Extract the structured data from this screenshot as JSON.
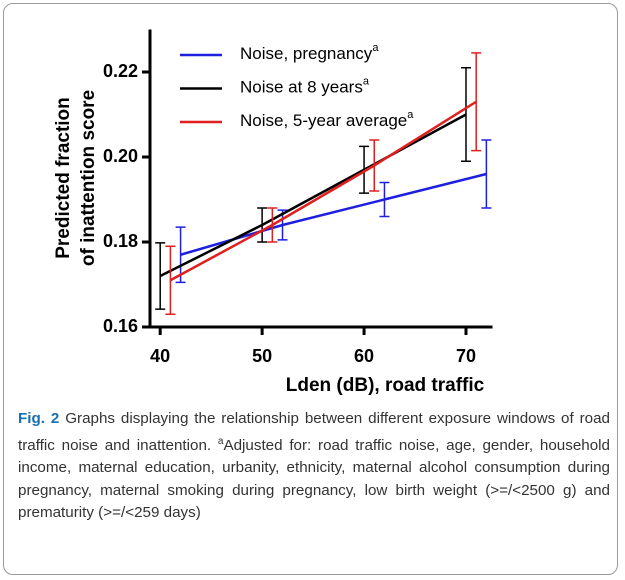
{
  "chart_data": {
    "type": "line",
    "x_label": "Lden (dB), road traffic",
    "y_label": [
      "Predicted fraction",
      "of inattention score"
    ],
    "footnote_mark": "a",
    "xlim": [
      39,
      72.6
    ],
    "xticks": [
      40,
      50,
      60,
      70
    ],
    "ylim": [
      0.16,
      0.23
    ],
    "yticks": [
      0.16,
      0.18,
      {
        "value": 0.2,
        "label": "0.20"
      },
      0.22
    ],
    "series": [
      {
        "name": "Noise, pregnancy",
        "color": "#1f1fe0",
        "x": [
          42,
          52,
          62,
          72
        ],
        "values": [
          0.177,
          0.184,
          0.19,
          0.196
        ],
        "errors": [
          0.0065,
          0.0035,
          0.004,
          0.008
        ]
      },
      {
        "name": "Noise at 8 years",
        "color": "#000000",
        "x": [
          40,
          50,
          60,
          70
        ],
        "values": [
          0.172,
          0.184,
          0.197,
          0.21
        ],
        "errors": [
          0.0078,
          0.004,
          0.0055,
          0.011
        ]
      },
      {
        "name": "Noise, 5-year average",
        "color": "#e01f1f",
        "x": [
          41,
          51,
          61,
          71
        ],
        "values": [
          0.171,
          0.184,
          0.198,
          0.213
        ],
        "errors": [
          0.008,
          0.004,
          0.006,
          0.0115
        ]
      }
    ]
  },
  "caption": {
    "label": "Fig. 2",
    "text": " Graphs displaying the relationship between different exposure windows of road traffic noise and inattention. ",
    "note_mark": "a",
    "note": "Adjusted for: road traffic noise, age, gender, household income, maternal education, urbanity, ethnicity, maternal alcohol consumption during pregnancy, maternal smoking during pregnancy, low birth weight (>=/<2500 g) and prematurity (>=/<259 days)"
  }
}
